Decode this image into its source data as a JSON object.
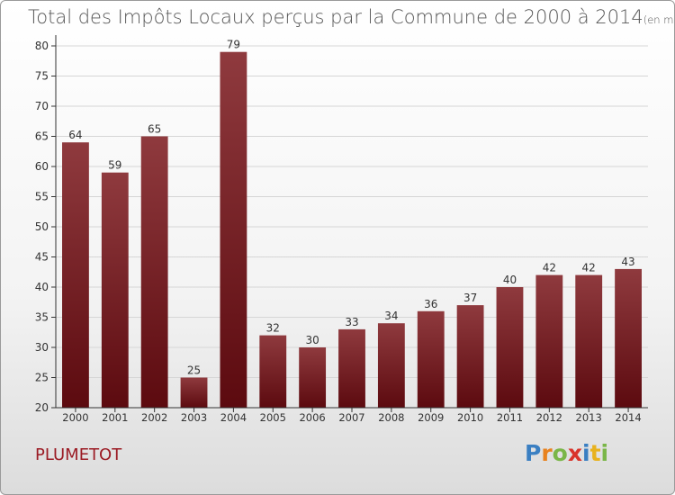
{
  "header": {
    "title": "Total des Impôts Locaux perçus par la Commune de 2000 à 2014",
    "unit": "(en milliers d'€)"
  },
  "footer": {
    "commune": "PLUMETOT",
    "logo_letters": [
      "P",
      "r",
      "o",
      "x",
      "i",
      "t",
      "i"
    ],
    "logo_colors": [
      "#3a7fc2",
      "#e8821e",
      "#7ab648",
      "#d9342b",
      "#3a7fc2",
      "#e8b21e",
      "#7ab648"
    ]
  },
  "colors": {
    "bar_top": "#8f3a3e",
    "bar_bottom": "#5c0a0f",
    "axis": "#333333",
    "grid": "#d6d6d6"
  },
  "chart_data": {
    "type": "bar",
    "categories": [
      "2000",
      "2001",
      "2002",
      "2003",
      "2004",
      "2005",
      "2006",
      "2007",
      "2008",
      "2009",
      "2010",
      "2011",
      "2012",
      "2013",
      "2014"
    ],
    "values": [
      64,
      59,
      65,
      25,
      79,
      32,
      30,
      33,
      34,
      36,
      37,
      40,
      42,
      42,
      43
    ],
    "yticks": [
      20,
      25,
      30,
      35,
      40,
      45,
      50,
      55,
      60,
      65,
      70,
      75,
      80
    ],
    "ylim": [
      20,
      80
    ],
    "grid": true,
    "show_data_labels": true
  }
}
